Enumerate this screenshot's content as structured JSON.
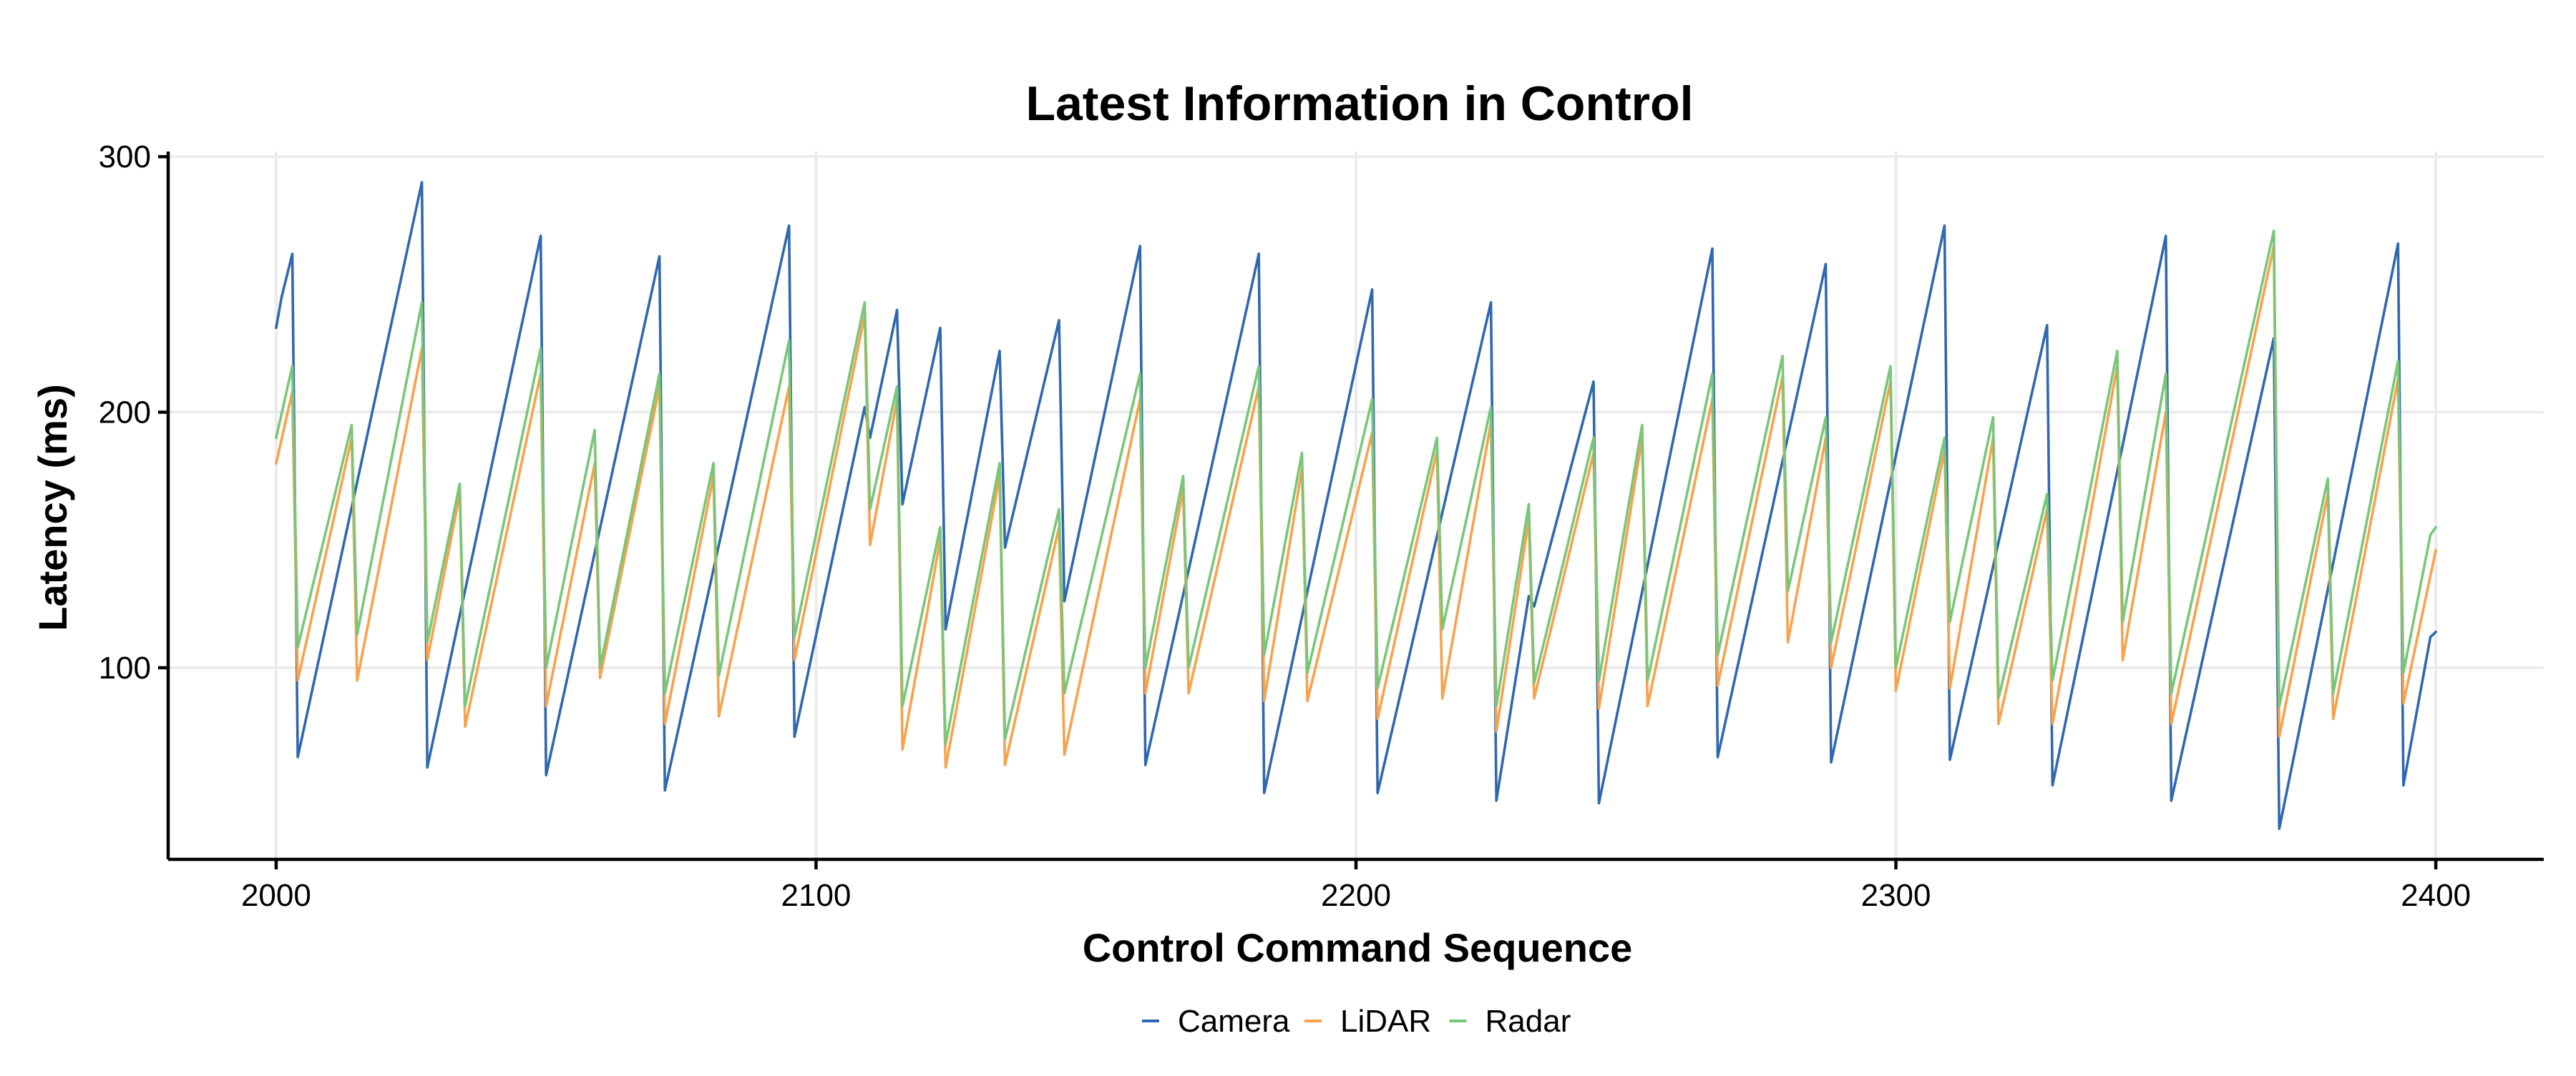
{
  "chart_data": {
    "type": "line",
    "title": "Latest Information in Control",
    "xlabel": "Control Command Sequence",
    "ylabel": "Latency (ms)",
    "xlim": [
      1980,
      2420
    ],
    "ylim": [
      25,
      302
    ],
    "x_ticks": [
      2000,
      2100,
      2200,
      2300,
      2400
    ],
    "y_ticks": [
      100,
      200,
      300
    ],
    "grid": true,
    "legend_position": "bottom",
    "series": [
      {
        "name": "Camera",
        "color": "#2f67b1",
        "points": [
          [
            2000,
            233
          ],
          [
            2001,
            245
          ],
          [
            2003,
            262
          ],
          [
            2004,
            65
          ],
          [
            2027,
            290
          ],
          [
            2028,
            61
          ],
          [
            2049,
            269
          ],
          [
            2050,
            58
          ],
          [
            2071,
            261
          ],
          [
            2072,
            52
          ],
          [
            2095,
            273
          ],
          [
            2096,
            73
          ],
          [
            2109,
            202
          ],
          [
            2110,
            190
          ],
          [
            2115,
            240
          ],
          [
            2116,
            164
          ],
          [
            2123,
            233
          ],
          [
            2124,
            115
          ],
          [
            2134,
            224
          ],
          [
            2135,
            147
          ],
          [
            2145,
            236
          ],
          [
            2146,
            126
          ],
          [
            2160,
            265
          ],
          [
            2161,
            62
          ],
          [
            2182,
            262
          ],
          [
            2183,
            51
          ],
          [
            2203,
            248
          ],
          [
            2204,
            51
          ],
          [
            2225,
            243
          ],
          [
            2226,
            48
          ],
          [
            2232,
            128
          ],
          [
            2233,
            124
          ],
          [
            2244,
            212
          ],
          [
            2245,
            47
          ],
          [
            2266,
            264
          ],
          [
            2267,
            65
          ],
          [
            2287,
            258
          ],
          [
            2288,
            63
          ],
          [
            2309,
            273
          ],
          [
            2310,
            64
          ],
          [
            2328,
            234
          ],
          [
            2329,
            54
          ],
          [
            2350,
            269
          ],
          [
            2351,
            48
          ],
          [
            2370,
            229
          ],
          [
            2371,
            37
          ],
          [
            2393,
            266
          ],
          [
            2394,
            54
          ],
          [
            2399,
            112
          ],
          [
            2400,
            114
          ]
        ]
      },
      {
        "name": "LiDAR",
        "color": "#f9a14c",
        "points": [
          [
            2000,
            180
          ],
          [
            2003,
            208
          ],
          [
            2004,
            95
          ],
          [
            2014,
            190
          ],
          [
            2015,
            95
          ],
          [
            2027,
            225
          ],
          [
            2028,
            103
          ],
          [
            2034,
            168
          ],
          [
            2035,
            77
          ],
          [
            2049,
            215
          ],
          [
            2050,
            85
          ],
          [
            2059,
            180
          ],
          [
            2060,
            96
          ],
          [
            2071,
            210
          ],
          [
            2072,
            78
          ],
          [
            2081,
            175
          ],
          [
            2082,
            81
          ],
          [
            2095,
            210
          ],
          [
            2096,
            103
          ],
          [
            2109,
            238
          ],
          [
            2110,
            148
          ],
          [
            2115,
            205
          ],
          [
            2116,
            68
          ],
          [
            2123,
            150
          ],
          [
            2124,
            61
          ],
          [
            2134,
            175
          ],
          [
            2135,
            62
          ],
          [
            2145,
            155
          ],
          [
            2146,
            66
          ],
          [
            2160,
            205
          ],
          [
            2161,
            90
          ],
          [
            2168,
            170
          ],
          [
            2169,
            90
          ],
          [
            2182,
            210
          ],
          [
            2183,
            87
          ],
          [
            2190,
            178
          ],
          [
            2191,
            87
          ],
          [
            2203,
            192
          ],
          [
            2204,
            80
          ],
          [
            2215,
            185
          ],
          [
            2216,
            88
          ],
          [
            2225,
            196
          ],
          [
            2226,
            75
          ],
          [
            2232,
            158
          ],
          [
            2233,
            88
          ],
          [
            2244,
            184
          ],
          [
            2245,
            84
          ],
          [
            2253,
            190
          ],
          [
            2254,
            85
          ],
          [
            2266,
            205
          ],
          [
            2267,
            93
          ],
          [
            2279,
            214
          ],
          [
            2280,
            110
          ],
          [
            2287,
            190
          ],
          [
            2288,
            100
          ],
          [
            2299,
            212
          ],
          [
            2300,
            91
          ],
          [
            2309,
            185
          ],
          [
            2310,
            92
          ],
          [
            2318,
            190
          ],
          [
            2319,
            78
          ],
          [
            2328,
            162
          ],
          [
            2329,
            78
          ],
          [
            2341,
            218
          ],
          [
            2342,
            103
          ],
          [
            2350,
            200
          ],
          [
            2351,
            78
          ],
          [
            2370,
            265
          ],
          [
            2371,
            73
          ],
          [
            2380,
            168
          ],
          [
            2381,
            80
          ],
          [
            2393,
            213
          ],
          [
            2394,
            86
          ],
          [
            2400,
            146
          ]
        ]
      },
      {
        "name": "Radar",
        "color": "#79c679",
        "points": [
          [
            2000,
            190
          ],
          [
            2003,
            218
          ],
          [
            2004,
            108
          ],
          [
            2014,
            195
          ],
          [
            2015,
            113
          ],
          [
            2027,
            243
          ],
          [
            2028,
            110
          ],
          [
            2034,
            172
          ],
          [
            2035,
            85
          ],
          [
            2049,
            225
          ],
          [
            2050,
            100
          ],
          [
            2059,
            193
          ],
          [
            2060,
            100
          ],
          [
            2071,
            215
          ],
          [
            2072,
            90
          ],
          [
            2081,
            180
          ],
          [
            2082,
            97
          ],
          [
            2095,
            228
          ],
          [
            2096,
            112
          ],
          [
            2109,
            243
          ],
          [
            2110,
            162
          ],
          [
            2115,
            210
          ],
          [
            2116,
            85
          ],
          [
            2123,
            155
          ],
          [
            2124,
            70
          ],
          [
            2134,
            180
          ],
          [
            2135,
            72
          ],
          [
            2145,
            162
          ],
          [
            2146,
            90
          ],
          [
            2160,
            215
          ],
          [
            2161,
            100
          ],
          [
            2168,
            175
          ],
          [
            2169,
            100
          ],
          [
            2182,
            218
          ],
          [
            2183,
            105
          ],
          [
            2190,
            184
          ],
          [
            2191,
            98
          ],
          [
            2203,
            205
          ],
          [
            2204,
            92
          ],
          [
            2215,
            190
          ],
          [
            2216,
            115
          ],
          [
            2225,
            202
          ],
          [
            2226,
            85
          ],
          [
            2232,
            164
          ],
          [
            2233,
            94
          ],
          [
            2244,
            190
          ],
          [
            2245,
            95
          ],
          [
            2253,
            195
          ],
          [
            2254,
            95
          ],
          [
            2266,
            215
          ],
          [
            2267,
            105
          ],
          [
            2279,
            222
          ],
          [
            2280,
            130
          ],
          [
            2287,
            198
          ],
          [
            2288,
            110
          ],
          [
            2299,
            218
          ],
          [
            2300,
            100
          ],
          [
            2309,
            190
          ],
          [
            2310,
            118
          ],
          [
            2318,
            198
          ],
          [
            2319,
            88
          ],
          [
            2328,
            168
          ],
          [
            2329,
            95
          ],
          [
            2341,
            224
          ],
          [
            2342,
            118
          ],
          [
            2350,
            215
          ],
          [
            2351,
            90
          ],
          [
            2370,
            271
          ],
          [
            2371,
            85
          ],
          [
            2380,
            174
          ],
          [
            2381,
            90
          ],
          [
            2393,
            220
          ],
          [
            2394,
            98
          ],
          [
            2399,
            152
          ],
          [
            2400,
            155
          ]
        ]
      }
    ]
  }
}
